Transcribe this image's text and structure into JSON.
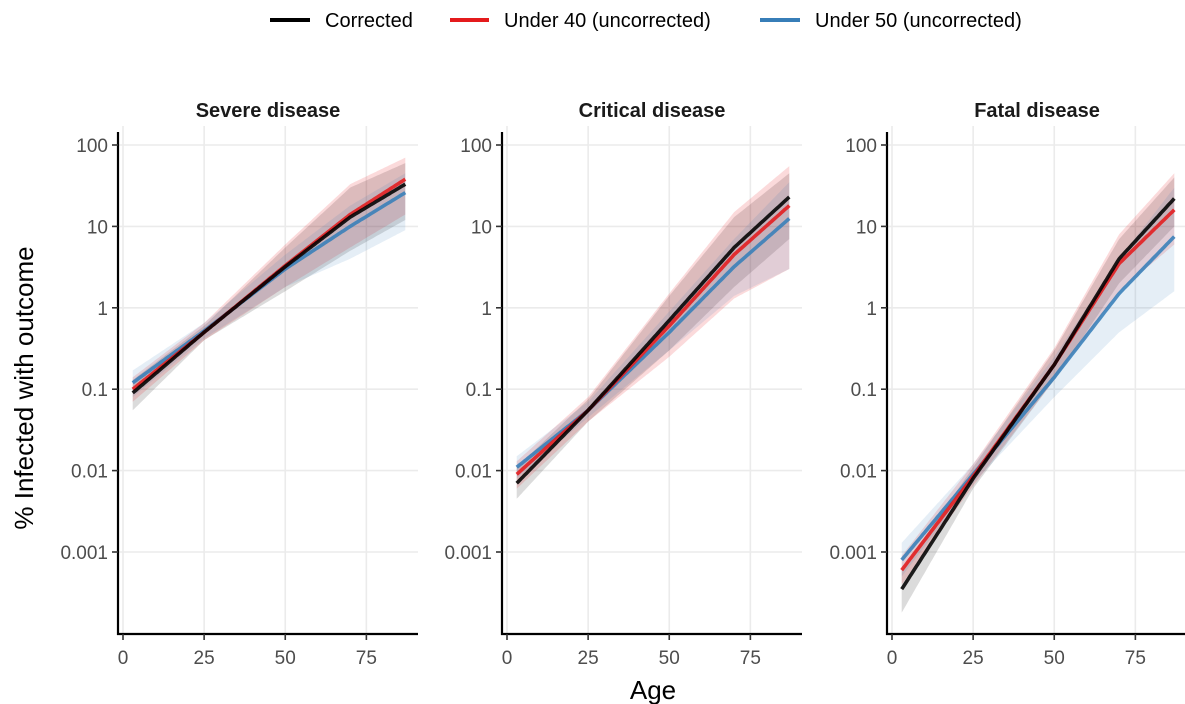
{
  "chart_data": {
    "type": "line",
    "xlabel": "Age",
    "ylabel": "% Infected with outcome",
    "y_scale": "log10",
    "xlim": [
      0,
      90
    ],
    "ylim": [
      0.0001,
      150
    ],
    "x_ticks": [
      0,
      25,
      50,
      75
    ],
    "x_tick_labels": [
      "0",
      "25",
      "50",
      "75"
    ],
    "y_ticks": [
      0.001,
      0.01,
      0.1,
      1,
      10,
      100
    ],
    "y_tick_labels": [
      "0.001",
      "0.01",
      "0.1",
      "1",
      "10",
      "100"
    ],
    "grid": true,
    "legend_position": "top",
    "legend": [
      {
        "label": "Corrected",
        "color": "#000000"
      },
      {
        "label": "Under 40 (uncorrected)",
        "color": "#e41a1c"
      },
      {
        "label": "Under 50 (uncorrected)",
        "color": "#377eb8"
      }
    ],
    "panels": [
      {
        "title": "Severe disease",
        "series": [
          {
            "name": "Corrected",
            "color": "#000000",
            "x": [
              3,
              25,
              50,
              70,
              87
            ],
            "y": [
              0.09,
              0.5,
              3.2,
              13,
              33
            ],
            "lower": [
              0.055,
              0.4,
              1.6,
              5,
              12
            ],
            "upper": [
              0.13,
              0.6,
              5.5,
              30,
              60
            ]
          },
          {
            "name": "Under 40 (uncorrected)",
            "color": "#e41a1c",
            "x": [
              3,
              25,
              50,
              70,
              87
            ],
            "y": [
              0.1,
              0.5,
              3.3,
              14,
              38
            ],
            "lower": [
              0.07,
              0.4,
              1.8,
              5.5,
              14
            ],
            "upper": [
              0.14,
              0.65,
              6,
              33,
              70
            ]
          },
          {
            "name": "Under 50 (uncorrected)",
            "color": "#377eb8",
            "x": [
              3,
              25,
              50,
              70,
              87
            ],
            "y": [
              0.12,
              0.52,
              3,
              10,
              26
            ],
            "lower": [
              0.08,
              0.42,
              1.8,
              4,
              9
            ],
            "upper": [
              0.17,
              0.65,
              4.5,
              18,
              45
            ]
          }
        ]
      },
      {
        "title": "Critical disease",
        "series": [
          {
            "name": "Corrected",
            "color": "#000000",
            "x": [
              3,
              25,
              50,
              70,
              87
            ],
            "y": [
              0.007,
              0.055,
              0.7,
              5.5,
              23
            ],
            "lower": [
              0.0045,
              0.04,
              0.3,
              1.8,
              7
            ],
            "upper": [
              0.011,
              0.075,
              1.4,
              13,
              45
            ]
          },
          {
            "name": "Under 40 (uncorrected)",
            "color": "#e41a1c",
            "x": [
              3,
              25,
              50,
              70,
              87
            ],
            "y": [
              0.009,
              0.055,
              0.6,
              4.5,
              18
            ],
            "lower": [
              0.006,
              0.04,
              0.25,
              1.3,
              3
            ],
            "upper": [
              0.013,
              0.08,
              1.5,
              15,
              55
            ]
          },
          {
            "name": "Under 50 (uncorrected)",
            "color": "#377eb8",
            "x": [
              3,
              25,
              50,
              70,
              87
            ],
            "y": [
              0.011,
              0.055,
              0.5,
              3.2,
              12.5
            ],
            "lower": [
              0.008,
              0.045,
              0.3,
              1.4,
              3
            ],
            "upper": [
              0.015,
              0.07,
              0.9,
              7,
              35
            ]
          }
        ]
      },
      {
        "title": "Fatal disease",
        "series": [
          {
            "name": "Corrected",
            "color": "#000000",
            "x": [
              3,
              25,
              50,
              70,
              87
            ],
            "y": [
              0.00035,
              0.008,
              0.2,
              4,
              22
            ],
            "lower": [
              0.00018,
              0.006,
              0.13,
              2,
              10
            ],
            "upper": [
              0.0006,
              0.011,
              0.3,
              7,
              40
            ]
          },
          {
            "name": "Under 40 (uncorrected)",
            "color": "#e41a1c",
            "x": [
              3,
              25,
              50,
              70,
              87
            ],
            "y": [
              0.0006,
              0.0085,
              0.2,
              3.5,
              16
            ],
            "lower": [
              0.0004,
              0.0065,
              0.13,
              1.6,
              6
            ],
            "upper": [
              0.0009,
              0.012,
              0.32,
              8,
              45
            ]
          },
          {
            "name": "Under 50 (uncorrected)",
            "color": "#377eb8",
            "x": [
              3,
              25,
              50,
              70,
              87
            ],
            "y": [
              0.0008,
              0.009,
              0.14,
              1.5,
              7.5
            ],
            "lower": [
              0.0005,
              0.007,
              0.08,
              0.5,
              1.6
            ],
            "upper": [
              0.0013,
              0.012,
              0.25,
              4,
              30
            ]
          }
        ]
      }
    ]
  }
}
